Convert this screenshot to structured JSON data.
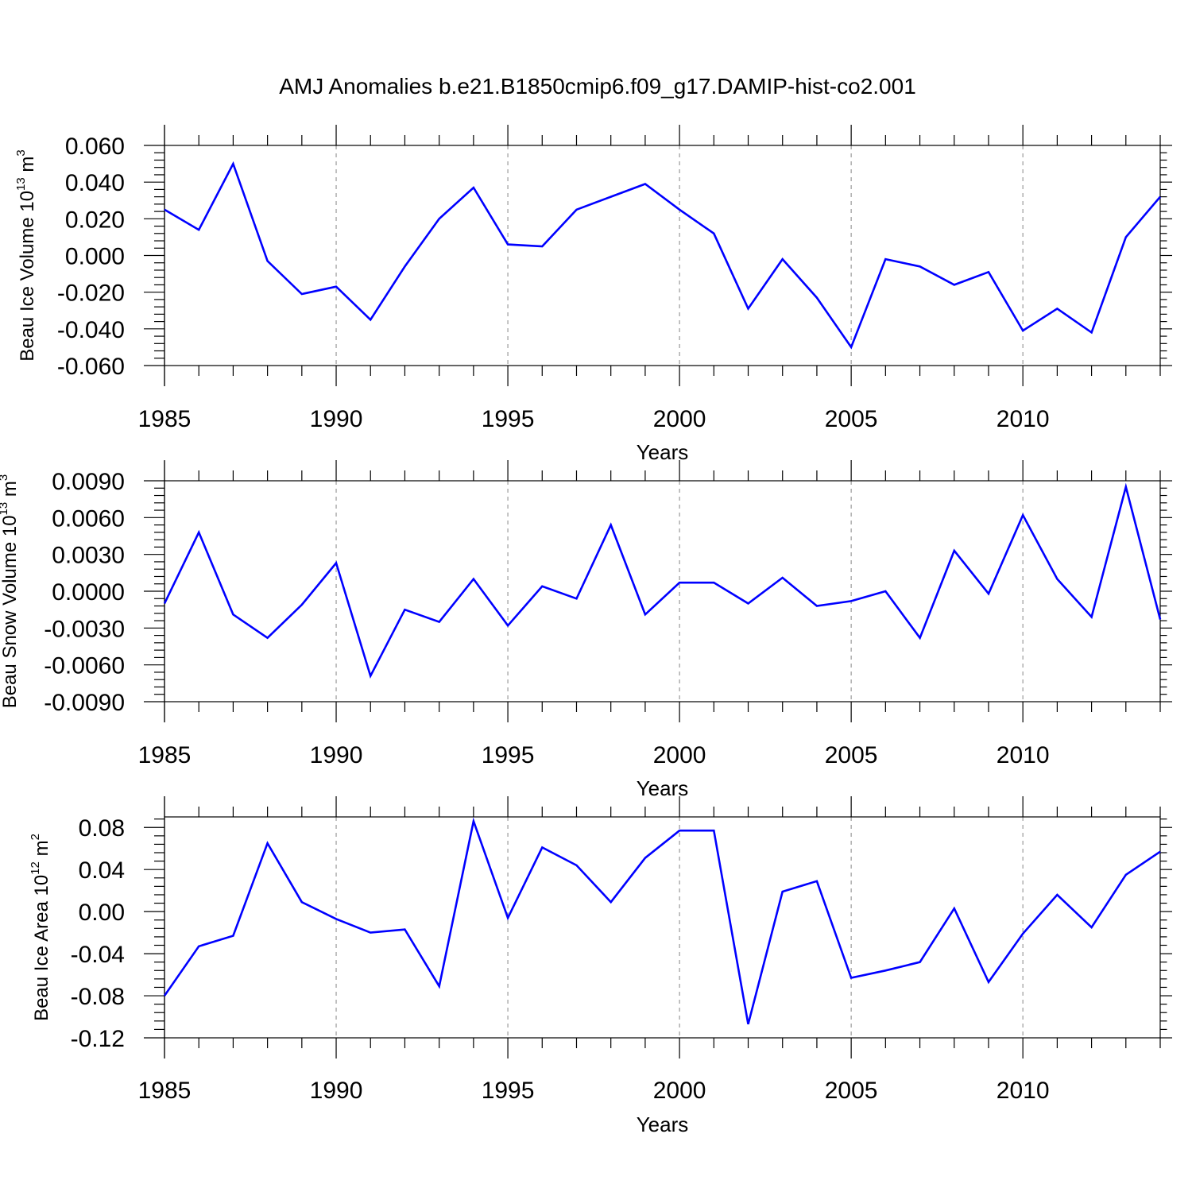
{
  "title": "AMJ Anomalies b.e21.B1850cmip6.f09_g17.DAMIP-hist-co2.001",
  "line_color": "#0000ff",
  "chart_data": [
    {
      "type": "line",
      "xlabel": "Years",
      "ylabel": {
        "prefix": "Beau Ice Volume 10",
        "exp": "13",
        "unit": " m",
        "unit_exp": "3"
      },
      "xlim": [
        1985,
        2014
      ],
      "ylim": [
        -0.06,
        0.06
      ],
      "xticks": [
        "1985",
        "1990",
        "1995",
        "2000",
        "2005",
        "2010"
      ],
      "xtick_values": [
        1985,
        1990,
        1995,
        2000,
        2005,
        2010
      ],
      "yticks": [
        "0.060",
        "0.040",
        "0.020",
        "0.000",
        "-0.020",
        "-0.040",
        "-0.060"
      ],
      "ytick_values": [
        0.06,
        0.04,
        0.02,
        0.0,
        -0.02,
        -0.04,
        -0.06
      ],
      "grid": "dashed vertical at major x ticks",
      "x": [
        1985,
        1986,
        1987,
        1988,
        1989,
        1990,
        1991,
        1992,
        1993,
        1994,
        1995,
        1996,
        1997,
        1998,
        1999,
        2000,
        2001,
        2002,
        2003,
        2004,
        2005,
        2006,
        2007,
        2008,
        2009,
        2010,
        2011,
        2012,
        2013,
        2014
      ],
      "series": [
        {
          "values": [
            0.025,
            0.014,
            0.05,
            -0.003,
            -0.021,
            -0.017,
            -0.035,
            -0.006,
            0.02,
            0.037,
            0.006,
            0.005,
            0.025,
            0.032,
            0.039,
            0.025,
            0.012,
            -0.029,
            -0.002,
            -0.023,
            -0.05,
            -0.002,
            -0.006,
            -0.016,
            -0.009,
            -0.041,
            -0.029,
            -0.042,
            0.01,
            0.032
          ]
        }
      ]
    },
    {
      "type": "line",
      "xlabel": "Years",
      "ylabel": {
        "prefix": "Beau Snow Volume 10",
        "exp": "13",
        "unit": " m",
        "unit_exp": "3"
      },
      "xlim": [
        1985,
        2014
      ],
      "ylim": [
        -0.009,
        0.009
      ],
      "xticks": [
        "1985",
        "1990",
        "1995",
        "2000",
        "2005",
        "2010"
      ],
      "xtick_values": [
        1985,
        1990,
        1995,
        2000,
        2005,
        2010
      ],
      "yticks": [
        "0.0090",
        "0.0060",
        "0.0030",
        "0.0000",
        "-0.0030",
        "-0.0060",
        "-0.0090"
      ],
      "ytick_values": [
        0.009,
        0.006,
        0.003,
        0.0,
        -0.003,
        -0.006,
        -0.009
      ],
      "grid": "dashed vertical at major x ticks",
      "x": [
        1985,
        1986,
        1987,
        1988,
        1989,
        1990,
        1991,
        1992,
        1993,
        1994,
        1995,
        1996,
        1997,
        1998,
        1999,
        2000,
        2001,
        2002,
        2003,
        2004,
        2005,
        2006,
        2007,
        2008,
        2009,
        2010,
        2011,
        2012,
        2013,
        2014
      ],
      "series": [
        {
          "values": [
            -0.001,
            0.0048,
            -0.0019,
            -0.0038,
            -0.0011,
            0.0023,
            -0.0069,
            -0.0015,
            -0.0025,
            0.001,
            -0.0028,
            0.0004,
            -0.0006,
            0.0054,
            -0.0019,
            0.0007,
            0.0007,
            -0.001,
            0.0011,
            -0.0012,
            -0.0008,
            0.0,
            -0.0038,
            0.0033,
            -0.0002,
            0.0062,
            0.001,
            -0.0021,
            0.0085,
            -0.0023
          ]
        }
      ]
    },
    {
      "type": "line",
      "xlabel": "Years",
      "ylabel": {
        "prefix": "Beau Ice Area 10",
        "exp": "12",
        "unit": " m",
        "unit_exp": "2"
      },
      "xlim": [
        1985,
        2014
      ],
      "ylim": [
        -0.12,
        0.09
      ],
      "xticks": [
        "1985",
        "1990",
        "1995",
        "2000",
        "2005",
        "2010"
      ],
      "xtick_values": [
        1985,
        1990,
        1995,
        2000,
        2005,
        2010
      ],
      "yticks": [
        "0.08",
        "0.04",
        "0.00",
        "-0.04",
        "-0.08",
        "-0.12"
      ],
      "ytick_values": [
        0.08,
        0.04,
        0.0,
        -0.04,
        -0.08,
        -0.12
      ],
      "grid": "dashed vertical at major x ticks",
      "x": [
        1985,
        1986,
        1987,
        1988,
        1989,
        1990,
        1991,
        1992,
        1993,
        1994,
        1995,
        1996,
        1997,
        1998,
        1999,
        2000,
        2001,
        2002,
        2003,
        2004,
        2005,
        2006,
        2007,
        2008,
        2009,
        2010,
        2011,
        2012,
        2013,
        2014
      ],
      "series": [
        {
          "values": [
            -0.08,
            -0.033,
            -0.023,
            0.065,
            0.009,
            -0.007,
            -0.02,
            -0.017,
            -0.071,
            0.086,
            -0.006,
            0.061,
            0.044,
            0.009,
            0.051,
            0.077,
            0.077,
            -0.107,
            0.019,
            0.029,
            -0.063,
            -0.056,
            -0.048,
            0.003,
            -0.067,
            -0.021,
            0.016,
            -0.015,
            0.035,
            0.057
          ]
        }
      ]
    }
  ]
}
